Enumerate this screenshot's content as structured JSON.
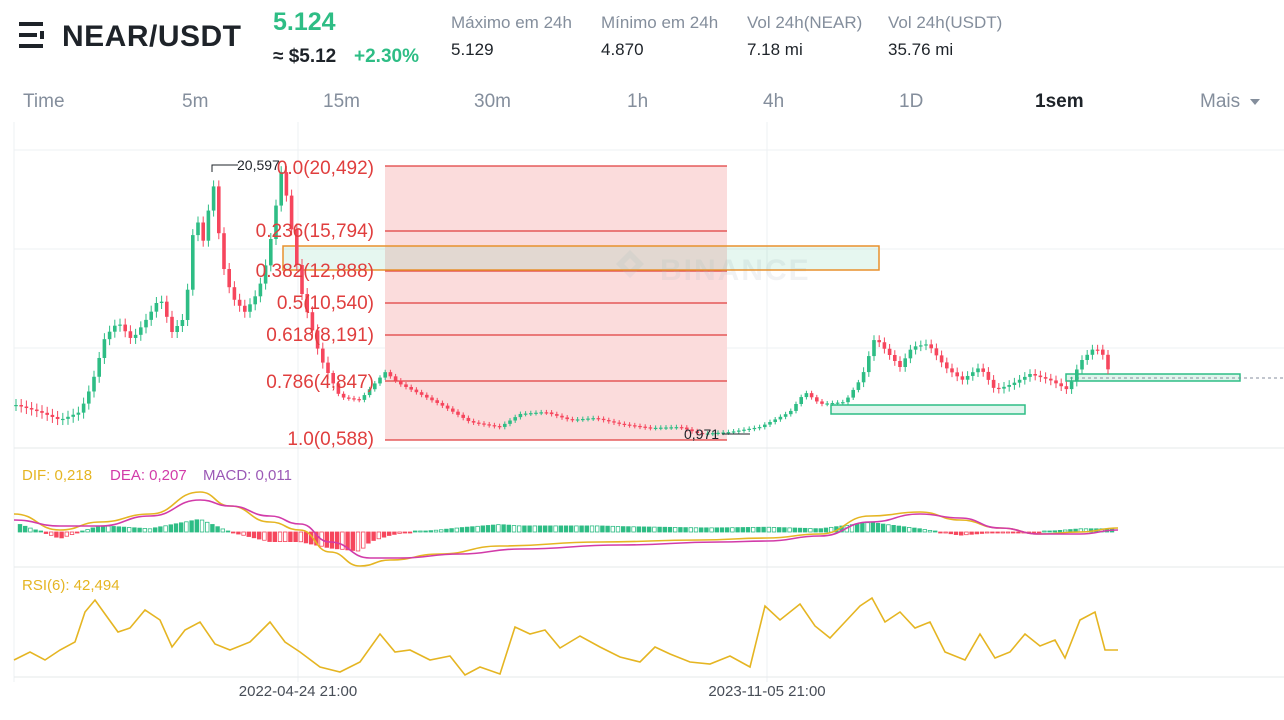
{
  "header": {
    "pair": "NEAR/USDT",
    "price": "5.124",
    "usd_price": "≈ $5.12",
    "change": "+2.30%",
    "stats": [
      {
        "label": "Máximo em 24h",
        "value": "5.129"
      },
      {
        "label": "Mínimo em 24h",
        "value": "4.870"
      },
      {
        "label": "Vol 24h(NEAR)",
        "value": "7.18 mi"
      },
      {
        "label": "Vol 24h(USDT)",
        "value": "35.76 mi"
      }
    ]
  },
  "tabs": [
    "Time",
    "5m",
    "15m",
    "30m",
    "1h",
    "4h",
    "1D",
    "1sem",
    "Mais"
  ],
  "active_tab": "1sem",
  "chart": {
    "watermark": "BINANCE",
    "fib_levels": [
      {
        "label": "0.0(20,492)",
        "price": 20.492
      },
      {
        "label": "0.236(15,794)",
        "price": 15.794
      },
      {
        "label": "0.382(12,888)",
        "price": 12.888
      },
      {
        "label": "0.5(10,540)",
        "price": 10.54
      },
      {
        "label": "0.618(8,191)",
        "price": 8.191
      },
      {
        "label": "0.786(4,847)",
        "price": 4.847
      },
      {
        "label": "1.0(0,588)",
        "price": 0.588
      }
    ],
    "high_marker": "20,597",
    "low_marker": "0,971",
    "macd_legend": {
      "dif": "DIF: 0,218",
      "dea": "DEA: 0,207",
      "macd": "MACD: 0,011"
    },
    "rsi_legend": "RSI(6): 42,494",
    "x_labels": [
      "2022-04-24 21:00",
      "2023-11-05 21:00"
    ],
    "colors": {
      "up": "#2ebd85",
      "down": "#f6465d",
      "fib": "#e03e3e",
      "dif": "#e5b522",
      "dea": "#d23ba9",
      "macd": "#9b59b6",
      "rsi": "#e5b522"
    }
  }
}
